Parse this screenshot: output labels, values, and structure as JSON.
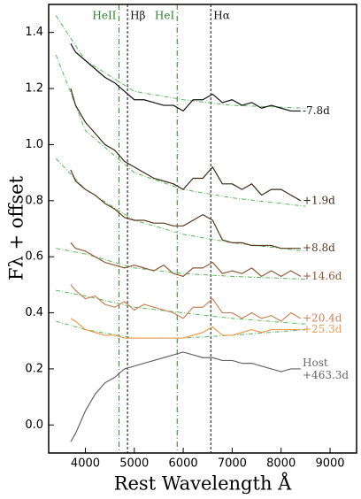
{
  "chart_data": {
    "type": "line",
    "xlabel": "Rest Wavelength Å",
    "ylabel": "Fλ + offset",
    "xlim": [
      3250,
      9560
    ],
    "ylim": [
      -0.1,
      1.5
    ],
    "xticks": [
      4000,
      5000,
      6000,
      7000,
      8000,
      9000
    ],
    "yticks": [
      {
        "value": 0,
        "label": "0.0"
      },
      0.2,
      0.4,
      0.6,
      0.8,
      {
        "value": 1,
        "label": "1.0"
      },
      1.2,
      1.4
    ],
    "x": [
      3700,
      3800,
      4000,
      4200,
      4400,
      4600,
      4800,
      5000,
      5200,
      5400,
      5600,
      5800,
      6000,
      6200,
      6400,
      6600,
      6800,
      7000,
      7200,
      7400,
      7600,
      7800,
      8000,
      8200,
      8400
    ],
    "series": [
      {
        "name": "-7.8d",
        "color": "#111111",
        "values": [
          1.36,
          1.33,
          1.3,
          1.27,
          1.24,
          1.22,
          1.19,
          1.16,
          1.16,
          1.15,
          1.14,
          1.14,
          1.12,
          1.16,
          1.16,
          1.18,
          1.15,
          1.16,
          1.14,
          1.15,
          1.13,
          1.14,
          1.13,
          1.12,
          1.12
        ]
      },
      {
        "name": "+1.9d",
        "color": "#3b2a1c",
        "values": [
          1.2,
          1.14,
          1.08,
          1.04,
          1.0,
          0.98,
          0.94,
          0.92,
          0.9,
          0.88,
          0.87,
          0.86,
          0.84,
          0.88,
          0.88,
          0.92,
          0.86,
          0.86,
          0.84,
          0.86,
          0.82,
          0.84,
          0.84,
          0.82,
          0.8
        ]
      },
      {
        "name": "+8.8d",
        "color": "#5a3b22",
        "values": [
          0.91,
          0.87,
          0.84,
          0.82,
          0.79,
          0.77,
          0.74,
          0.73,
          0.73,
          0.72,
          0.72,
          0.71,
          0.71,
          0.73,
          0.75,
          0.73,
          0.66,
          0.65,
          0.65,
          0.64,
          0.64,
          0.64,
          0.63,
          0.63,
          0.63
        ]
      },
      {
        "name": "+14.6d",
        "color": "#8e5a38",
        "values": [
          0.65,
          0.63,
          0.62,
          0.6,
          0.58,
          0.57,
          0.56,
          0.57,
          0.56,
          0.55,
          0.57,
          0.54,
          0.53,
          0.56,
          0.56,
          0.58,
          0.54,
          0.55,
          0.54,
          0.56,
          0.53,
          0.55,
          0.53,
          0.55,
          0.53
        ]
      },
      {
        "name": "+20.4d",
        "color": "#c8845a",
        "values": [
          0.5,
          0.48,
          0.45,
          0.46,
          0.43,
          0.42,
          0.44,
          0.41,
          0.43,
          0.42,
          0.41,
          0.4,
          0.38,
          0.42,
          0.42,
          0.45,
          0.4,
          0.4,
          0.38,
          0.4,
          0.38,
          0.39,
          0.37,
          0.4,
          0.38
        ]
      },
      {
        "name": "+25.3d",
        "color": "#ec9a55",
        "values": [
          0.38,
          0.37,
          0.34,
          0.33,
          0.32,
          0.32,
          0.31,
          0.31,
          0.31,
          0.31,
          0.31,
          0.31,
          0.31,
          0.32,
          0.33,
          0.35,
          0.32,
          0.32,
          0.33,
          0.34,
          0.33,
          0.34,
          0.34,
          0.34,
          0.34
        ]
      },
      {
        "name": "Host +463.3d",
        "color": "#666666",
        "values": [
          -0.06,
          -0.03,
          0.05,
          0.11,
          0.15,
          0.17,
          0.2,
          0.21,
          0.22,
          0.23,
          0.24,
          0.25,
          0.26,
          0.25,
          0.24,
          0.24,
          0.23,
          0.23,
          0.22,
          0.22,
          0.21,
          0.2,
          0.19,
          0.2,
          0.2
        ]
      }
    ],
    "fit_color": "#5cb85c",
    "fit_x": [
      3400,
      4000,
      5000,
      6000,
      7000,
      8500
    ],
    "fits": [
      [
        1.46,
        1.3,
        1.19,
        1.16,
        1.14,
        1.13
      ],
      [
        1.32,
        1.05,
        0.9,
        0.84,
        0.81,
        0.78
      ],
      [
        0.95,
        0.84,
        0.73,
        0.68,
        0.65,
        0.62
      ],
      [
        0.63,
        0.61,
        0.56,
        0.54,
        0.53,
        0.52
      ],
      [
        0.48,
        0.46,
        0.42,
        0.4,
        0.38,
        0.36
      ],
      [
        0.37,
        0.34,
        0.31,
        0.31,
        0.32,
        0.34
      ]
    ],
    "lines": [
      {
        "label": "HeII",
        "x": 4686,
        "color": "#2e7d2e",
        "style": "dashdot"
      },
      {
        "label": "Hβ",
        "x": 4861,
        "color": "#111111",
        "style": "dashed"
      },
      {
        "label": "HeI",
        "x": 5876,
        "color": "#2e7d2e",
        "style": "dashdot"
      },
      {
        "label": "Hα",
        "x": 6563,
        "color": "#111111",
        "style": "dashed"
      }
    ]
  }
}
